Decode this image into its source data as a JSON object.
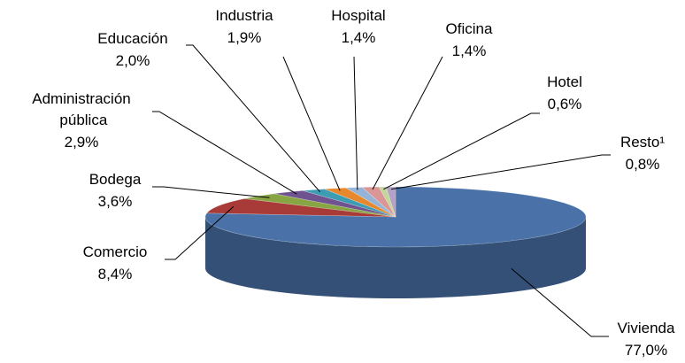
{
  "chart_data": {
    "type": "pie",
    "categories": [
      "Vivienda",
      "Comercio",
      "Bodega",
      "Administración pública",
      "Educación",
      "Industria",
      "Hospital",
      "Oficina",
      "Hotel",
      "Resto¹"
    ],
    "values": [
      77.0,
      8.4,
      3.6,
      2.9,
      2.0,
      1.9,
      1.4,
      1.4,
      0.6,
      0.8
    ],
    "value_labels": [
      "77,0%",
      "8,4%",
      "3,6%",
      "2,9%",
      "2,0%",
      "1,9%",
      "1,4%",
      "1,4%",
      "0,6%",
      "0,8%"
    ],
    "colors": [
      "#4a72a8",
      "#a83a38",
      "#88a543",
      "#6f5290",
      "#3c9cb4",
      "#e8882c",
      "#95b3d7",
      "#d99694",
      "#c3d69b",
      "#b3a2c7"
    ]
  }
}
